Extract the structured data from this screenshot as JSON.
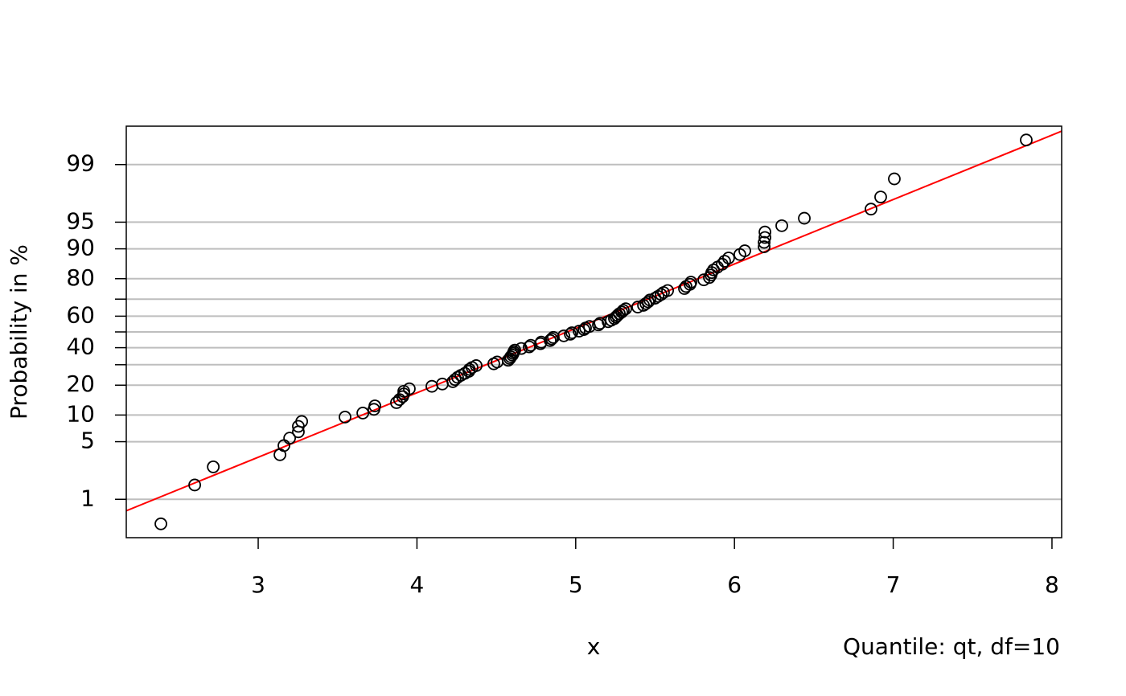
{
  "chart_data": {
    "type": "probability",
    "yscale": "t-quantile",
    "df": 10,
    "x_label": "x",
    "y_label": "Probability in %",
    "caption": "Quantile: qt, df=10",
    "xlim": [
      2.169,
      8.061
    ],
    "xticks": [
      3,
      4,
      5,
      6,
      7,
      8
    ],
    "ylim": [
      0.34,
      99.66
    ],
    "yticks": [
      1,
      5,
      10,
      20,
      40,
      60,
      80,
      90,
      95,
      99
    ],
    "yminor_ticks": [
      30,
      50,
      70
    ],
    "grid": true,
    "grid_color": "#bebebe",
    "point_color": "#000000",
    "fit_line": {
      "location": 4.945,
      "scale": 0.94,
      "color": "#ff0000"
    },
    "x": [
      2.387,
      2.6,
      2.717,
      3.137,
      3.162,
      3.198,
      3.253,
      3.253,
      3.274,
      3.547,
      3.659,
      3.729,
      3.735,
      3.871,
      3.89,
      3.91,
      3.917,
      3.917,
      3.952,
      4.094,
      4.16,
      4.226,
      4.24,
      4.256,
      4.277,
      4.302,
      4.327,
      4.33,
      4.347,
      4.373,
      4.484,
      4.505,
      4.575,
      4.585,
      4.591,
      4.601,
      4.606,
      4.61,
      4.616,
      4.657,
      4.707,
      4.717,
      4.778,
      4.783,
      4.839,
      4.849,
      4.859,
      4.925,
      4.966,
      4.976,
      5.021,
      5.052,
      5.062,
      5.087,
      5.143,
      5.153,
      5.204,
      5.224,
      5.244,
      5.254,
      5.264,
      5.275,
      5.29,
      5.3,
      5.315,
      5.391,
      5.427,
      5.442,
      5.457,
      5.467,
      5.5,
      5.518,
      5.538,
      5.553,
      5.579,
      5.685,
      5.695,
      5.72,
      5.726,
      5.807,
      5.842,
      5.852,
      5.857,
      5.868,
      5.893,
      5.923,
      5.938,
      5.963,
      6.034,
      6.065,
      6.187,
      6.187,
      6.192,
      6.192,
      6.298,
      6.44,
      6.86,
      6.921,
      7.007,
      7.838
    ],
    "values": [
      0.5,
      1.5,
      2.5,
      3.5,
      4.5,
      5.5,
      6.5,
      7.5,
      8.5,
      9.5,
      10.5,
      11.5,
      12.5,
      13.5,
      14.5,
      15.5,
      16.5,
      17.5,
      18.5,
      19.5,
      20.5,
      21.5,
      22.5,
      23.5,
      24.5,
      25.5,
      26.5,
      27.5,
      28.5,
      29.5,
      30.5,
      31.5,
      32.5,
      33.5,
      34.5,
      35.5,
      36.5,
      37.5,
      38.5,
      39.5,
      40.5,
      41.5,
      42.5,
      43.5,
      44.5,
      45.5,
      46.5,
      47.5,
      48.5,
      49.5,
      50.5,
      51.5,
      52.5,
      53.5,
      54.5,
      55.5,
      56.5,
      57.5,
      58.5,
      59.5,
      60.5,
      61.5,
      62.5,
      63.5,
      64.5,
      65.5,
      66.5,
      67.5,
      68.5,
      69.5,
      70.5,
      71.5,
      72.5,
      73.5,
      74.5,
      75.5,
      76.5,
      77.5,
      78.5,
      79.5,
      80.5,
      81.5,
      82.5,
      83.5,
      84.5,
      85.5,
      86.5,
      87.5,
      88.5,
      89.5,
      90.5,
      91.5,
      92.5,
      93.5,
      94.5,
      95.5,
      96.5,
      97.5,
      98.5,
      99.5
    ]
  }
}
